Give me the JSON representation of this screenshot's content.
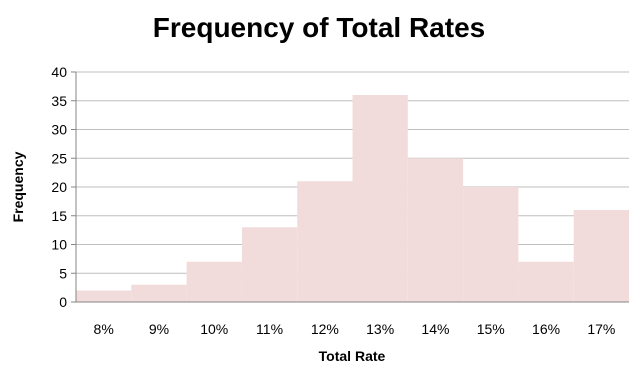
{
  "chart_data": {
    "type": "bar",
    "title": "Frequency of Total Rates",
    "xlabel": "Total Rate",
    "ylabel": "Frequency",
    "categories": [
      "8%",
      "9%",
      "10%",
      "11%",
      "12%",
      "13%",
      "14%",
      "15%",
      "16%",
      "17%"
    ],
    "values": [
      2,
      3,
      7,
      13,
      21,
      36,
      25,
      20,
      7,
      16
    ],
    "ylim": [
      0,
      40
    ],
    "yticks": [
      0,
      5,
      10,
      15,
      20,
      25,
      30,
      35,
      40
    ],
    "grid": true,
    "legend": "none",
    "bar_color": "#f2dcdb",
    "grid_color": "#bfbfbf",
    "axis_color": "#868686"
  }
}
